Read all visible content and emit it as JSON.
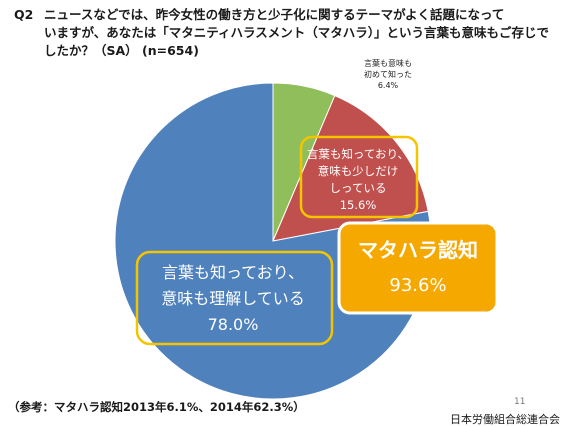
{
  "question": {
    "id": "Q2",
    "lines": [
      "ニュースなどでは、昨今女性の働き方と少子化に関するテーマがよく話題になって",
      "いますが、あなたは「マタニティハラスメント（マタハラ）」という言葉も意味もご存じで",
      "したか？（SA） (n=654)"
    ]
  },
  "chart_data": {
    "type": "pie",
    "n": 654,
    "slices": [
      {
        "label_lines": [
          "言葉も意味も",
          "初めて知った"
        ],
        "value": 6.4,
        "value_label": "6.4%",
        "color": "#8fbe5a"
      },
      {
        "label_lines": [
          "言葉も知っており、",
          "意味も少しだけ",
          "しっている"
        ],
        "value": 15.6,
        "value_label": "15.6%",
        "color": "#c0504d"
      },
      {
        "label_lines": [
          "言葉も知っており、",
          "意味も理解している"
        ],
        "value": 78.0,
        "value_label": "78.0%",
        "color": "#4f81bd"
      }
    ],
    "callout": {
      "title": "マタハラ認知",
      "value_label": "93.6%",
      "bg_color": "#f5a800"
    },
    "highlight_color": "#f5c400"
  },
  "footnote": "（参考：マタハラ認知2013年6.1%、2014年62.3%）",
  "page_number": "11",
  "organization": "日本労働組合総連合会"
}
